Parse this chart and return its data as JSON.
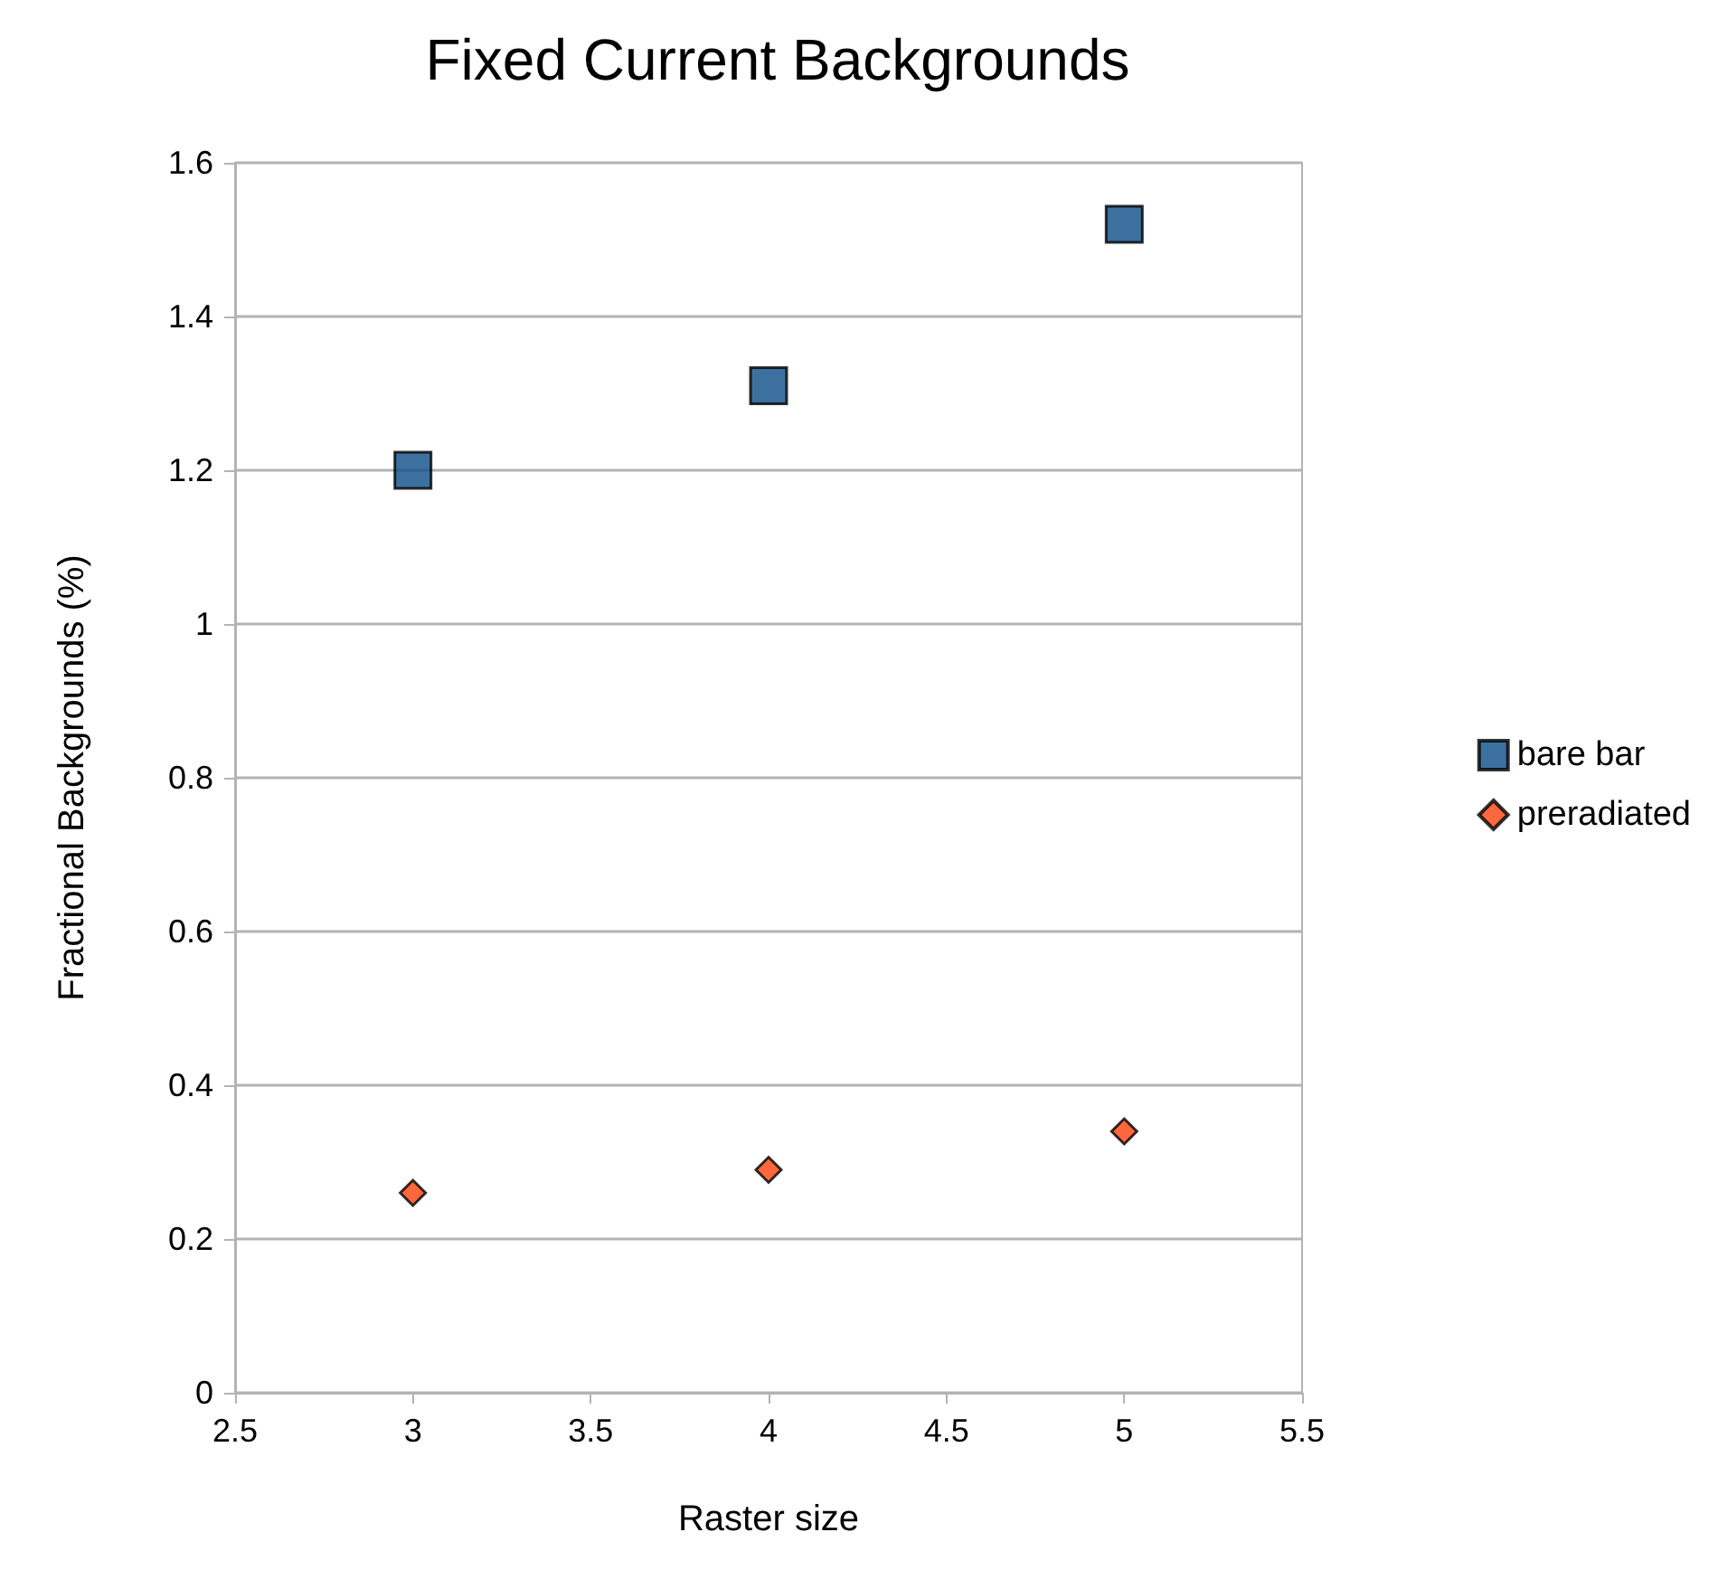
{
  "chart_data": {
    "type": "scatter",
    "title": "Fixed Current Backgrounds",
    "xlabel": "Raster size",
    "ylabel": "Fractional Backgrounds (%)",
    "x": [
      3,
      4,
      5
    ],
    "series": [
      {
        "name": "bare bar",
        "color": "#0b4d87",
        "marker": "square",
        "values": [
          1.2,
          1.31,
          1.52
        ]
      },
      {
        "name": "preradiated",
        "color": "#ff420e",
        "marker": "diamond",
        "values": [
          0.26,
          0.29,
          0.34
        ]
      }
    ],
    "xlim": [
      2.5,
      5.5
    ],
    "xticks": [
      2.5,
      3,
      3.5,
      4,
      4.5,
      5,
      5.5
    ],
    "ylim": [
      0,
      1.6
    ],
    "yticks": [
      0,
      0.2,
      0.4,
      0.6,
      0.8,
      1,
      1.2,
      1.4,
      1.6
    ],
    "grid": "y",
    "legend": "right"
  }
}
